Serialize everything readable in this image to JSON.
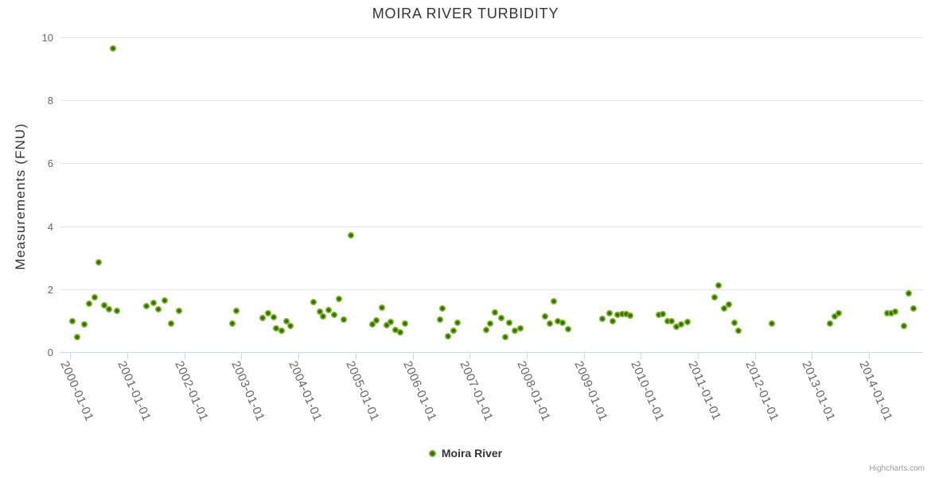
{
  "colors": {
    "background": "#ffffff",
    "title_text": "#333333",
    "axis_label_text": "#666666",
    "axis_line": "#ccd6eb",
    "gridline": "#e6e6e6",
    "marker_center": "#336e0a",
    "marker_rim": "#7ab81b",
    "credits_text": "#999999"
  },
  "chart_data": {
    "type": "scatter",
    "title": "MOIRA RIVER TURBIDITY",
    "xlabel": "",
    "ylabel": "Measurements (FNU)",
    "ylim": [
      0,
      10
    ],
    "yticks": [
      0,
      2,
      4,
      6,
      8,
      10
    ],
    "grid": "horizontal-only",
    "legend_position": "bottom-center",
    "xtick_labels": [
      "2000-01-01",
      "2001-01-01",
      "2002-01-01",
      "2003-01-01",
      "2004-01-01",
      "2005-01-01",
      "2006-01-01",
      "2007-01-01",
      "2008-01-01",
      "2009-01-01",
      "2010-01-01",
      "2011-01-01",
      "2012-01-01",
      "2013-01-01",
      "2014-01-01"
    ],
    "legend": [
      {
        "name": "Moira River",
        "color": "#7ab81b"
      }
    ],
    "credits": "Highcharts.com",
    "series": [
      {
        "name": "Moira River",
        "x_unit": "decimal-year",
        "points": [
          [
            2000.04,
            0.98
          ],
          [
            2000.12,
            0.47
          ],
          [
            2000.25,
            0.89
          ],
          [
            2000.33,
            1.54
          ],
          [
            2000.43,
            1.74
          ],
          [
            2000.5,
            2.85
          ],
          [
            2000.6,
            1.49
          ],
          [
            2000.68,
            1.36
          ],
          [
            2000.75,
            9.65
          ],
          [
            2000.82,
            1.32
          ],
          [
            2001.33,
            1.46
          ],
          [
            2001.46,
            1.57
          ],
          [
            2001.55,
            1.36
          ],
          [
            2001.66,
            1.63
          ],
          [
            2001.77,
            0.92
          ],
          [
            2001.91,
            1.31
          ],
          [
            2002.84,
            0.92
          ],
          [
            2002.91,
            1.31
          ],
          [
            2003.37,
            1.09
          ],
          [
            2003.47,
            1.23
          ],
          [
            2003.56,
            1.11
          ],
          [
            2003.61,
            0.77
          ],
          [
            2003.71,
            0.68
          ],
          [
            2003.79,
            0.98
          ],
          [
            2003.86,
            0.83
          ],
          [
            2004.26,
            1.58
          ],
          [
            2004.37,
            1.29
          ],
          [
            2004.43,
            1.14
          ],
          [
            2004.53,
            1.34
          ],
          [
            2004.62,
            1.19
          ],
          [
            2004.71,
            1.69
          ],
          [
            2004.8,
            1.03
          ],
          [
            2004.92,
            3.72
          ],
          [
            2005.3,
            0.88
          ],
          [
            2005.37,
            1.0
          ],
          [
            2005.47,
            1.41
          ],
          [
            2005.55,
            0.85
          ],
          [
            2005.62,
            0.96
          ],
          [
            2005.7,
            0.71
          ],
          [
            2005.79,
            0.64
          ],
          [
            2005.87,
            0.92
          ],
          [
            2006.48,
            1.04
          ],
          [
            2006.52,
            1.38
          ],
          [
            2006.62,
            0.5
          ],
          [
            2006.72,
            0.68
          ],
          [
            2006.79,
            0.94
          ],
          [
            2007.29,
            0.71
          ],
          [
            2007.36,
            0.9
          ],
          [
            2007.44,
            1.27
          ],
          [
            2007.56,
            1.09
          ],
          [
            2007.63,
            0.47
          ],
          [
            2007.7,
            0.93
          ],
          [
            2007.79,
            0.68
          ],
          [
            2007.89,
            0.77
          ],
          [
            2008.32,
            1.13
          ],
          [
            2008.4,
            0.9
          ],
          [
            2008.48,
            1.61
          ],
          [
            2008.55,
            0.98
          ],
          [
            2008.63,
            0.94
          ],
          [
            2008.72,
            0.73
          ],
          [
            2009.32,
            1.06
          ],
          [
            2009.45,
            1.25
          ],
          [
            2009.51,
            0.98
          ],
          [
            2009.59,
            1.19
          ],
          [
            2009.68,
            1.21
          ],
          [
            2009.75,
            1.2
          ],
          [
            2009.82,
            1.16
          ],
          [
            2010.31,
            1.19
          ],
          [
            2010.38,
            1.21
          ],
          [
            2010.47,
            0.98
          ],
          [
            2010.54,
            0.98
          ],
          [
            2010.63,
            0.81
          ],
          [
            2010.71,
            0.88
          ],
          [
            2010.82,
            0.96
          ],
          [
            2011.29,
            1.73
          ],
          [
            2011.36,
            2.11
          ],
          [
            2011.46,
            1.38
          ],
          [
            2011.54,
            1.52
          ],
          [
            2011.64,
            0.93
          ],
          [
            2011.71,
            0.68
          ],
          [
            2012.3,
            0.92
          ],
          [
            2013.32,
            0.9
          ],
          [
            2013.4,
            1.13
          ],
          [
            2013.47,
            1.25
          ],
          [
            2014.32,
            1.25
          ],
          [
            2014.39,
            1.24
          ],
          [
            2014.46,
            1.3
          ],
          [
            2014.61,
            0.83
          ],
          [
            2014.69,
            1.86
          ],
          [
            2014.78,
            1.38
          ]
        ]
      }
    ]
  }
}
